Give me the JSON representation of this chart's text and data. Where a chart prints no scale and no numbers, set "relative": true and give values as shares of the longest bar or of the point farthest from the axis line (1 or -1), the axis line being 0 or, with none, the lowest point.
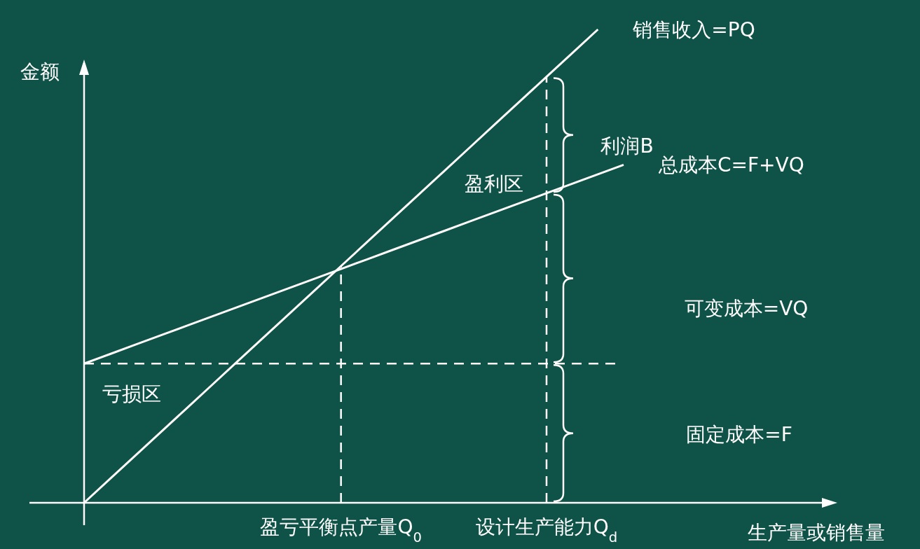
{
  "chart_data": {
    "type": "line",
    "relative": true,
    "ylabel": "金额",
    "categories": [
      null,
      null,
      null,
      null,
      null,
      null,
      null,
      null,
      null,
      null,
      "盈亏平衡点产量Q$_{0}$",
      null,
      null,
      null,
      null,
      null,
      null,
      null,
      "设计生产能力Q$_{d}$",
      null,
      null,
      null
    ],
    "series": [
      {
        "name": "销售收入=PQ",
        "color": "#ffffff",
        "values": [
          0,
          0.05,
          0.1,
          0.15,
          0.2,
          0.25,
          0.3,
          0.35,
          0.4,
          0.45,
          0.5,
          0.55,
          0.6,
          0.65,
          0.7,
          0.75,
          0.8,
          0.85,
          0.9,
          0.95,
          1,
          null
        ]
      },
      {
        "name": "总成本C=F+VQ",
        "color": "#ffffff",
        "values": [
          0.294,
          0.314,
          0.334,
          0.354,
          0.374,
          0.394,
          0.414,
          0.434,
          0.454,
          0.474,
          0.494,
          0.514,
          0.534,
          0.554,
          0.574,
          0.594,
          0.614,
          0.634,
          0.654,
          0.674,
          0.694,
          0.714
        ]
      }
    ],
    "ref_lines": [
      {
        "axis": "y",
        "value": 0.294,
        "line_style": "dashed",
        "color": "#ffffff"
      },
      {
        "axis": "x",
        "value": "盈亏平衡点产量Q$_{0}$",
        "line_style": "dashed",
        "color": "#ffffff"
      },
      {
        "axis": "x",
        "value": "设计生产能力Q$_{d}$",
        "line_style": "dashed",
        "color": "#ffffff"
      }
    ],
    "annotations": [
      "盈利区",
      "亏损区",
      "利润B",
      "可变成本=VQ",
      "固定成本=F",
      "生产量或销售量"
    ]
  }
}
